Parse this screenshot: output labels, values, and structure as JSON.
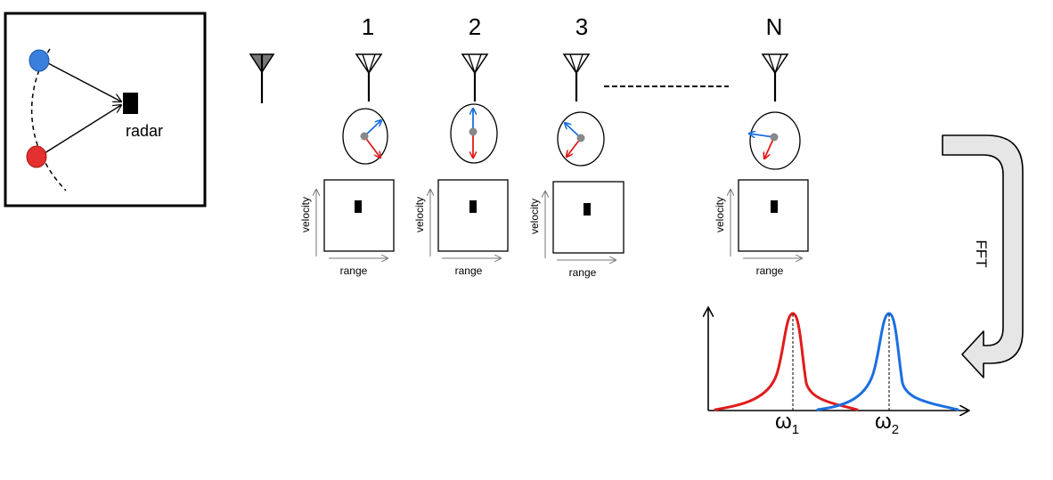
{
  "scene": {
    "radar_label": "radar",
    "target_colors": {
      "blue": "#3a7fdc",
      "red": "#e53030"
    }
  },
  "antennas": [
    {
      "label": "1",
      "range_label": "range",
      "velocity_label": "velocity"
    },
    {
      "label": "2",
      "range_label": "range",
      "velocity_label": "velocity"
    },
    {
      "label": "3",
      "range_label": "range",
      "velocity_label": "velocity"
    },
    {
      "label": "N",
      "range_label": "range",
      "velocity_label": "velocity"
    }
  ],
  "fft_label": "FFT",
  "spectrum": {
    "peak1_symbol": "ω",
    "peak1_sub": "1",
    "peak2_symbol": "ω",
    "peak2_sub": "2",
    "colors": {
      "peak1": "#e11b1b",
      "peak2": "#1a6fe0"
    }
  }
}
